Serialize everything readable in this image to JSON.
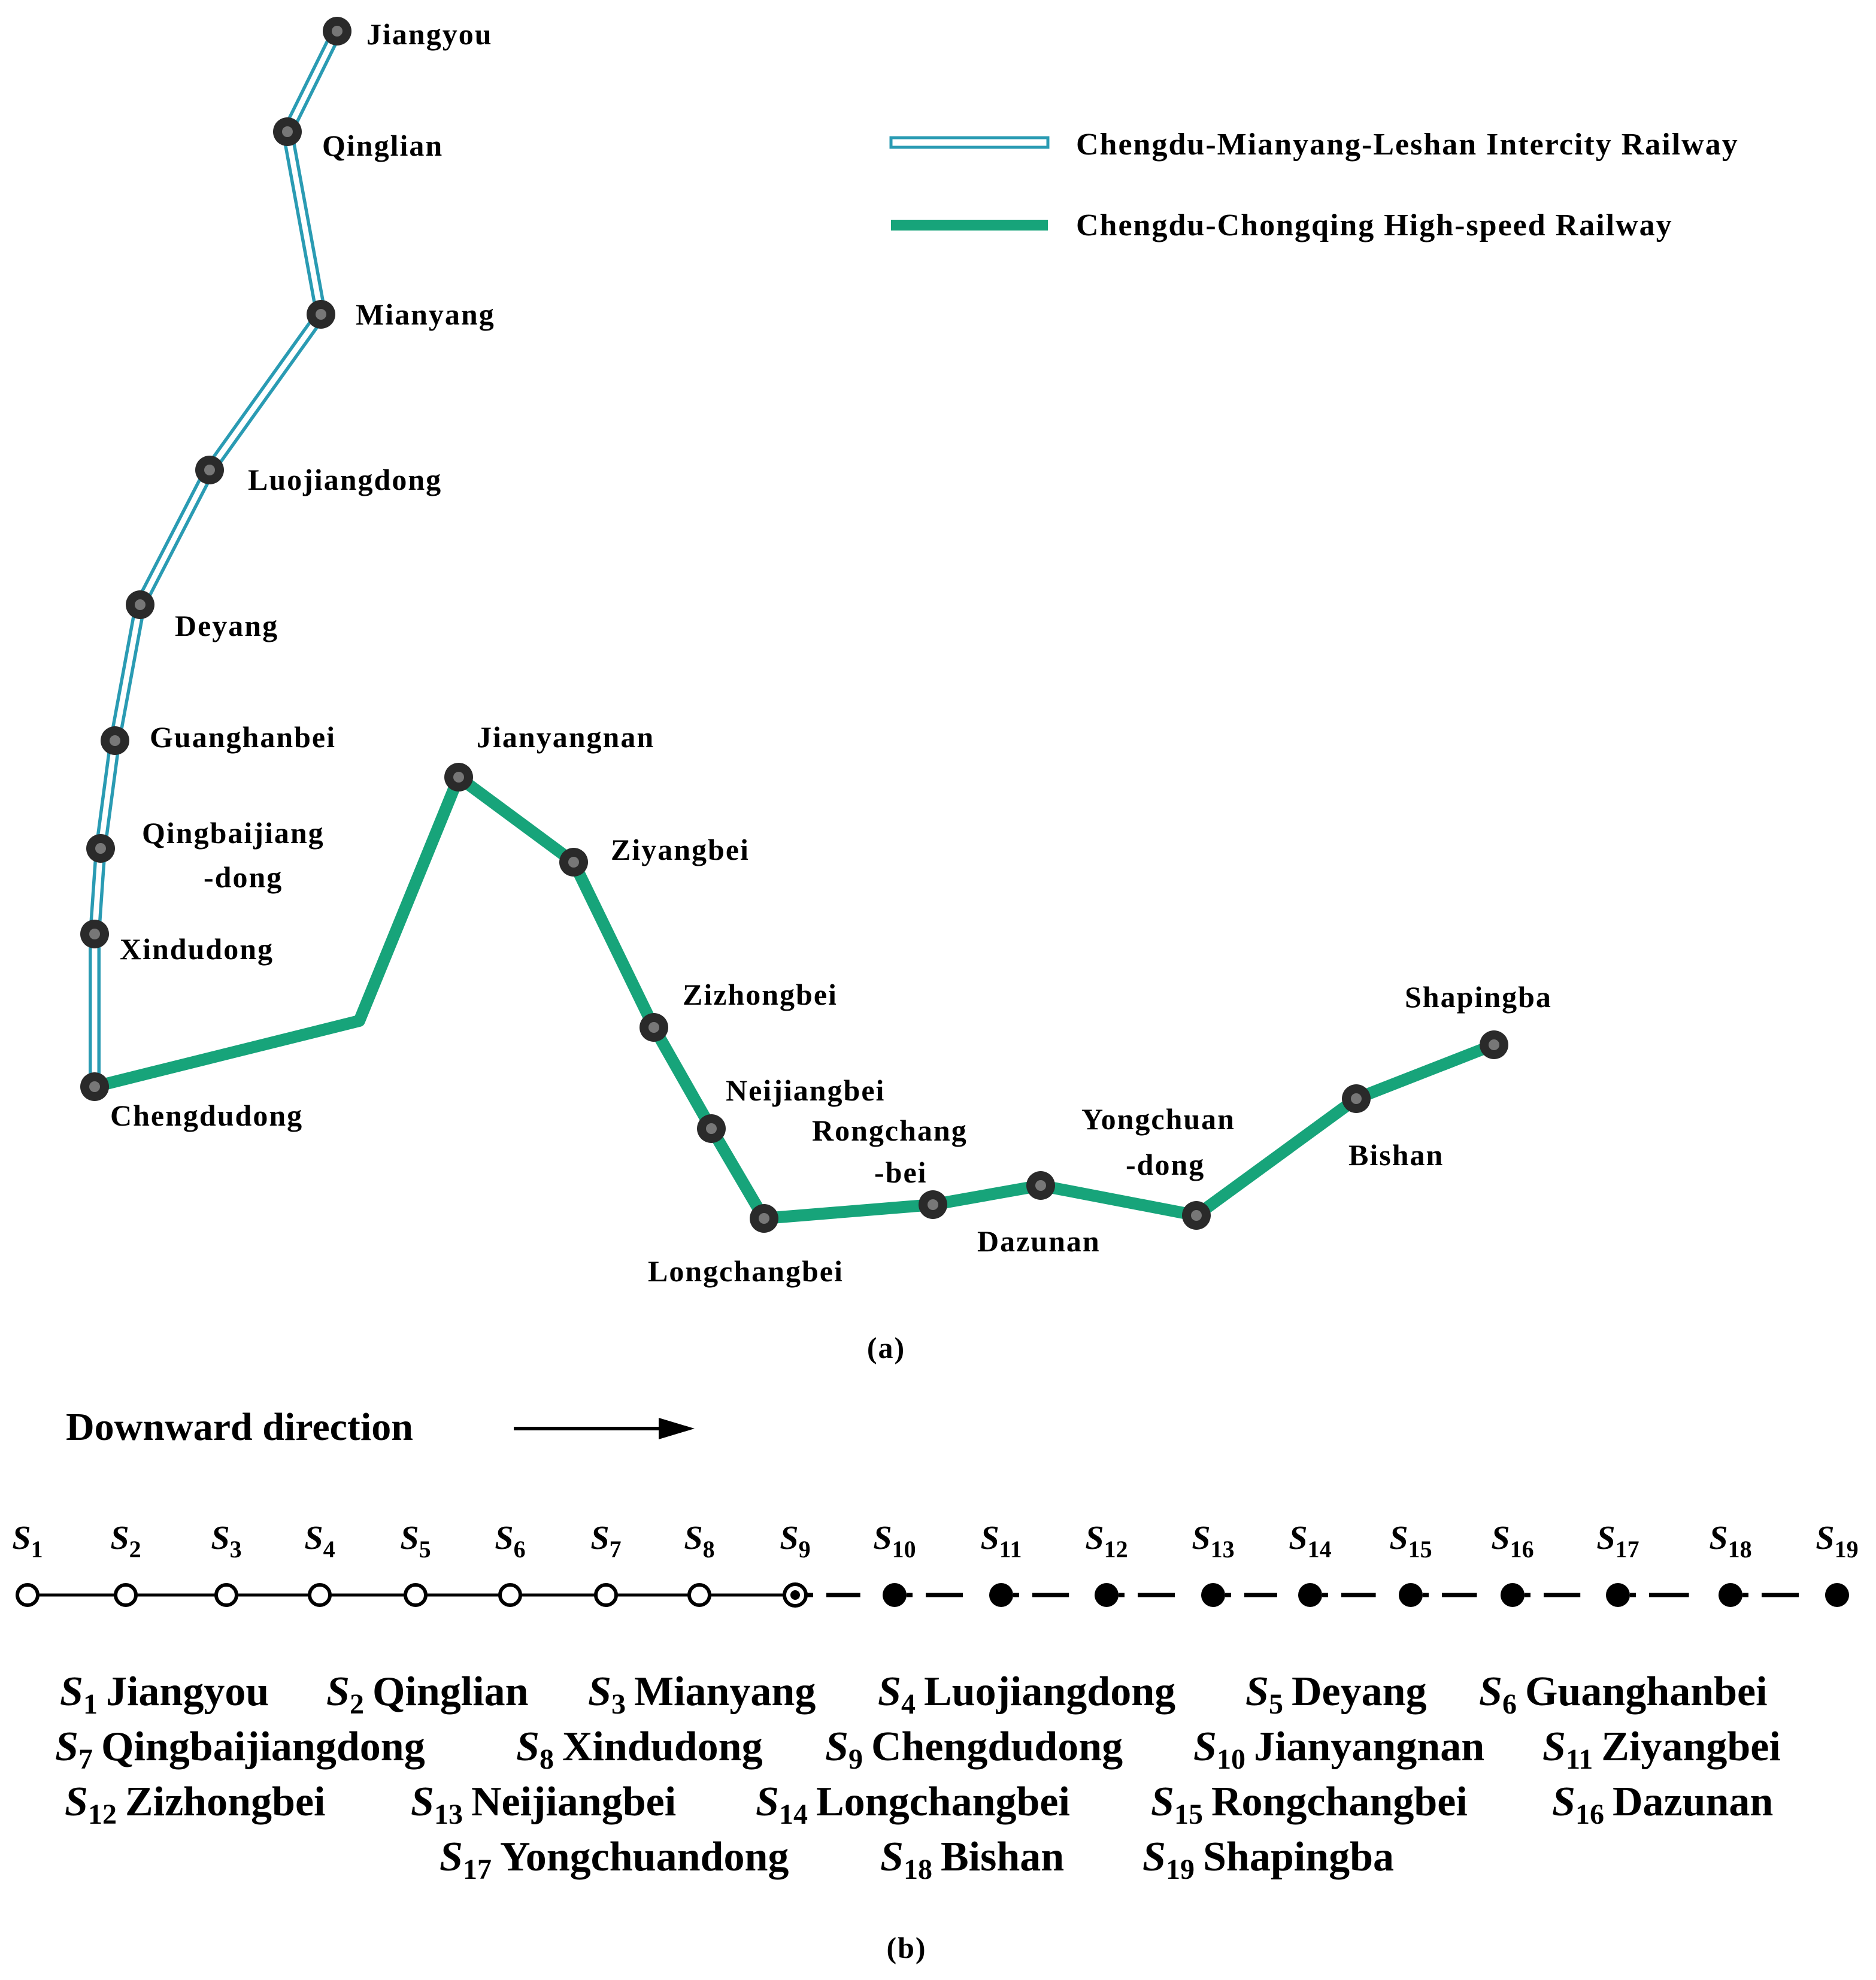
{
  "legend": {
    "intercity": "Chengdu-Mianyang-Leshan Intercity Railway",
    "highspeed": "Chengdu-Chongqing High-speed Railway"
  },
  "colors": {
    "intercity_line": "#2a9bb3",
    "highspeed_line": "#17a47a",
    "station_fill": "#2a2a2a",
    "station_center": "#777777"
  },
  "map_labels": {
    "jiangyou": "Jiangyou",
    "qinglian": "Qinglian",
    "mianyang": "Mianyang",
    "luojiangdong": "Luojiangdong",
    "deyang": "Deyang",
    "guanghanbei": "Guanghanbei",
    "qingbaijiang_1": "Qingbaijiang",
    "qingbaijiang_2": "-dong",
    "xindudong": "Xindudong",
    "chengdudong": "Chengdudong",
    "jianyangnan": "Jianyangnan",
    "ziyangbei": "Ziyangbei",
    "zizhongbei": "Zizhongbei",
    "neijiangbei": "Neijiangbei",
    "rongchang_1": "Rongchang",
    "rongchang_2": "-bei",
    "longchangbei": "Longchangbei",
    "dazunan": "Dazunan",
    "yongchuan_1": "Yongchuan",
    "yongchuan_2": "-dong",
    "bishan": "Bishan",
    "shapingba": "Shapingba"
  },
  "panel_a": "(a)",
  "panel_b": "(b)",
  "direction": "Downward direction",
  "sequence": [
    {
      "s": "S",
      "n": "1"
    },
    {
      "s": "S",
      "n": "2"
    },
    {
      "s": "S",
      "n": "3"
    },
    {
      "s": "S",
      "n": "4"
    },
    {
      "s": "S",
      "n": "5"
    },
    {
      "s": "S",
      "n": "6"
    },
    {
      "s": "S",
      "n": "7"
    },
    {
      "s": "S",
      "n": "8"
    },
    {
      "s": "S",
      "n": "9"
    },
    {
      "s": "S",
      "n": "10"
    },
    {
      "s": "S",
      "n": "11"
    },
    {
      "s": "S",
      "n": "12"
    },
    {
      "s": "S",
      "n": "13"
    },
    {
      "s": "S",
      "n": "14"
    },
    {
      "s": "S",
      "n": "15"
    },
    {
      "s": "S",
      "n": "16"
    },
    {
      "s": "S",
      "n": "17"
    },
    {
      "s": "S",
      "n": "18"
    },
    {
      "s": "S",
      "n": "19"
    }
  ],
  "key": [
    {
      "n": "1",
      "name": "Jiangyou"
    },
    {
      "n": "2",
      "name": "Qinglian"
    },
    {
      "n": "3",
      "name": "Mianyang"
    },
    {
      "n": "4",
      "name": "Luojiangdong"
    },
    {
      "n": "5",
      "name": "Deyang"
    },
    {
      "n": "6",
      "name": "Guanghanbei"
    },
    {
      "n": "7",
      "name": "Qingbaijiangdong"
    },
    {
      "n": "8",
      "name": "Xindudong"
    },
    {
      "n": "9",
      "name": "Chengdudong"
    },
    {
      "n": "10",
      "name": "Jianyangnan"
    },
    {
      "n": "11",
      "name": "Ziyangbei"
    },
    {
      "n": "12",
      "name": "Zizhongbei"
    },
    {
      "n": "13",
      "name": "Neijiangbei"
    },
    {
      "n": "14",
      "name": "Longchangbei"
    },
    {
      "n": "15",
      "name": "Rongchangbei"
    },
    {
      "n": "16",
      "name": "Dazunan"
    },
    {
      "n": "17",
      "name": "Yongchuandong"
    },
    {
      "n": "18",
      "name": "Bishan"
    },
    {
      "n": "19",
      "name": "Shapingba"
    }
  ]
}
